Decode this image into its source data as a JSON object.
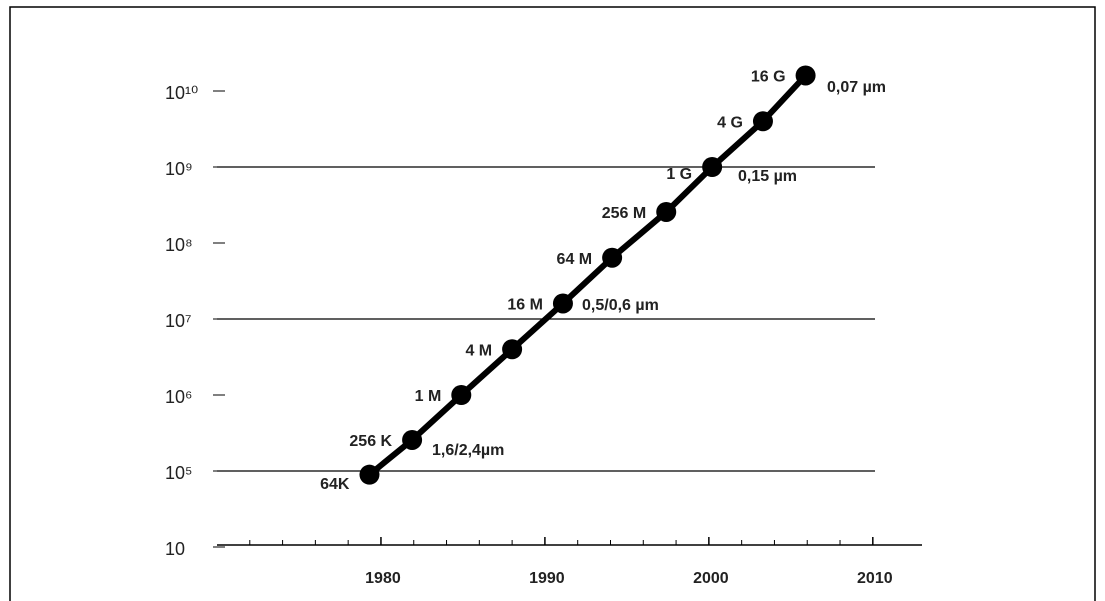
{
  "chart_data": {
    "type": "line",
    "scale": "log",
    "x": [
      1979.3,
      1981.9,
      1984.9,
      1988.0,
      1991.1,
      1994.1,
      1997.4,
      2000.2,
      2003.3,
      2005.9
    ],
    "series": [
      {
        "color": "#000000",
        "values": [
          64000,
          256000,
          1000000,
          4000000,
          16000000,
          64000000,
          256000000,
          1000000000,
          4000000000,
          16000000000
        ],
        "value_labels": [
          "64K",
          "256 K",
          "1 M",
          "4 M",
          "16 M",
          "64 M",
          "256 M",
          "1 G",
          "4 G",
          "16 G"
        ]
      }
    ],
    "annotations": [
      "1,6/2,4µm",
      "0,5/0,6 µm",
      "0,15 µm",
      "0,07 µm"
    ],
    "xlim": [
      1970,
      2013
    ],
    "xticks": [
      1980,
      1990,
      2000,
      2010
    ],
    "minor_xticks": [
      1972,
      1974,
      1976,
      1978,
      1982,
      1984,
      1986,
      1988,
      1992,
      1994,
      1996,
      1998,
      2002,
      2004,
      2006,
      2008
    ],
    "ylim": [
      10,
      20000000000
    ],
    "yticks": [
      10,
      {
        "value": 100000,
        "label": "10⁵"
      },
      {
        "value": 1000000,
        "label": "10⁶"
      },
      {
        "value": 10000000,
        "label": "10⁷"
      },
      {
        "value": 100000000,
        "label": "10⁸"
      },
      {
        "value": 1000000000,
        "label": "10⁹"
      },
      {
        "value": 10000000000,
        "label": "10¹⁰"
      }
    ],
    "grid_lines": [
      100000,
      10000000,
      1000000000
    ]
  }
}
